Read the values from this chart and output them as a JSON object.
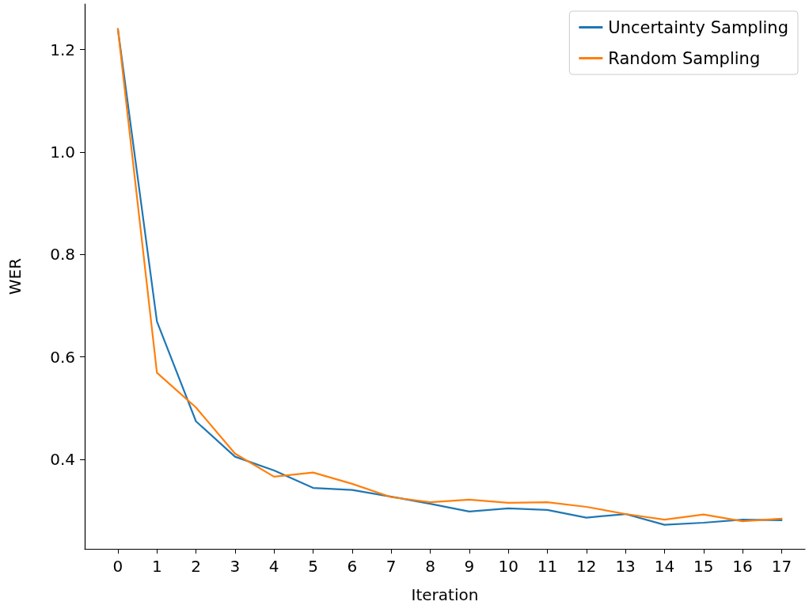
{
  "chart_data": {
    "type": "line",
    "xlabel": "Iteration",
    "ylabel": "WER",
    "x": [
      0,
      1,
      2,
      3,
      4,
      5,
      6,
      7,
      8,
      9,
      10,
      11,
      12,
      13,
      14,
      15,
      16,
      17
    ],
    "series": [
      {
        "name": "Uncertainty Sampling",
        "color": "#1f77b4",
        "values": [
          1.24,
          0.669,
          0.474,
          0.405,
          0.378,
          0.344,
          0.34,
          0.327,
          0.313,
          0.298,
          0.304,
          0.301,
          0.286,
          0.293,
          0.272,
          0.276,
          0.282,
          0.281
        ]
      },
      {
        "name": "Random Sampling",
        "color": "#ff7f0e",
        "values": [
          1.24,
          0.569,
          0.501,
          0.411,
          0.366,
          0.374,
          0.352,
          0.326,
          0.316,
          0.321,
          0.315,
          0.316,
          0.307,
          0.293,
          0.282,
          0.292,
          0.279,
          0.284
        ]
      }
    ],
    "xlim": [
      -0.85,
      17.6
    ],
    "xticks": [
      0,
      1,
      2,
      3,
      4,
      5,
      6,
      7,
      8,
      9,
      10,
      11,
      12,
      13,
      14,
      15,
      16,
      17
    ],
    "ylim": [
      0.225,
      1.289
    ],
    "yticks": [
      {
        "value": 0.4,
        "label": "0.4"
      },
      {
        "value": 0.6,
        "label": "0.6"
      },
      {
        "value": 0.8,
        "label": "0.8"
      },
      {
        "value": 1.0,
        "label": "1.0"
      },
      {
        "value": 1.2,
        "label": "1.2"
      }
    ],
    "grid": false,
    "legend": "top right",
    "marker": "none",
    "line_style": "solid"
  }
}
